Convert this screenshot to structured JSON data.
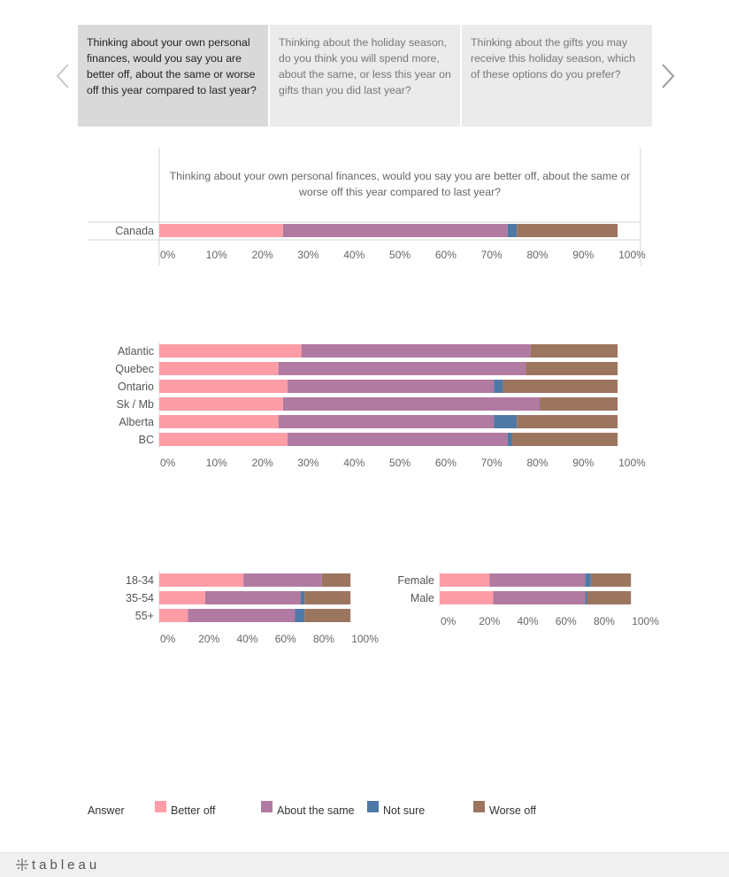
{
  "nav": {
    "tabs": [
      {
        "label": "Thinking about your own personal finances, would you say you are better off, about the same or worse off this year compared to last year?",
        "active": true
      },
      {
        "label": "Thinking about the holiday season, do you think you will spend more, about the same, or less this year on gifts than you did last year?",
        "active": false
      },
      {
        "label": "Thinking about the gifts you may receive this holiday season, which of these options do you prefer?",
        "active": false
      }
    ],
    "prev_icon": "chevron-left-icon",
    "next_icon": "chevron-right-icon"
  },
  "colors": {
    "better_off": "#ff9da7",
    "about_the_same": "#b07aa1",
    "not_sure": "#4e79a7",
    "worse_off": "#9c755f"
  },
  "legend": {
    "title": "Answer",
    "items": [
      "Better off",
      "About the same",
      "Not sure",
      "Worse off"
    ]
  },
  "footer": {
    "brand": "tableau",
    "icon": "tableau-logo-icon"
  },
  "chart_data": [
    {
      "type": "bar",
      "orientation": "horizontal",
      "stacked": true,
      "title": "Thinking about your own personal finances, would you say you are better off, about the same or worse off this year compared to last year?",
      "categories": [
        "Canada"
      ],
      "series": [
        {
          "name": "Better off",
          "values": [
            27
          ]
        },
        {
          "name": "About the same",
          "values": [
            49
          ]
        },
        {
          "name": "Not sure",
          "values": [
            2
          ]
        },
        {
          "name": "Worse off",
          "values": [
            22
          ]
        }
      ],
      "xlim": [
        0,
        105
      ],
      "ticks": [
        "0%",
        "10%",
        "20%",
        "30%",
        "40%",
        "50%",
        "60%",
        "70%",
        "80%",
        "90%",
        "100%"
      ]
    },
    {
      "type": "bar",
      "orientation": "horizontal",
      "stacked": true,
      "categories": [
        "Atlantic",
        "Quebec",
        "Ontario",
        "Sk / Mb",
        "Alberta",
        "BC"
      ],
      "series": [
        {
          "name": "Better off",
          "values": [
            31,
            26,
            28,
            27,
            26,
            28
          ]
        },
        {
          "name": "About the same",
          "values": [
            50,
            54,
            45,
            56,
            47,
            48
          ]
        },
        {
          "name": "Not sure",
          "values": [
            0,
            0,
            2,
            0,
            5,
            1
          ]
        },
        {
          "name": "Worse off",
          "values": [
            19,
            20,
            25,
            17,
            22,
            23
          ]
        }
      ],
      "xlim": [
        0,
        105
      ],
      "ticks": [
        "0%",
        "10%",
        "20%",
        "30%",
        "40%",
        "50%",
        "60%",
        "70%",
        "80%",
        "90%",
        "100%"
      ]
    },
    {
      "type": "bar",
      "orientation": "horizontal",
      "stacked": true,
      "categories": [
        "18-34",
        "35-54",
        "55+"
      ],
      "series": [
        {
          "name": "Better off",
          "values": [
            44,
            24,
            15
          ]
        },
        {
          "name": "About the same",
          "values": [
            41,
            50,
            56
          ]
        },
        {
          "name": "Not sure",
          "values": [
            0,
            2,
            5
          ]
        },
        {
          "name": "Worse off",
          "values": [
            15,
            24,
            24
          ]
        }
      ],
      "xlim": [
        0,
        105
      ],
      "ticks": [
        "0%",
        "20%",
        "40%",
        "60%",
        "80%",
        "100%"
      ]
    },
    {
      "type": "bar",
      "orientation": "horizontal",
      "stacked": true,
      "categories": [
        "Female",
        "Male"
      ],
      "series": [
        {
          "name": "Better off",
          "values": [
            26,
            28
          ]
        },
        {
          "name": "About the same",
          "values": [
            50,
            48
          ]
        },
        {
          "name": "Not sure",
          "values": [
            3,
            1
          ]
        },
        {
          "name": "Worse off",
          "values": [
            21,
            23
          ]
        }
      ],
      "xlim": [
        0,
        105
      ],
      "ticks": [
        "0%",
        "20%",
        "40%",
        "60%",
        "80%",
        "100%"
      ]
    }
  ]
}
